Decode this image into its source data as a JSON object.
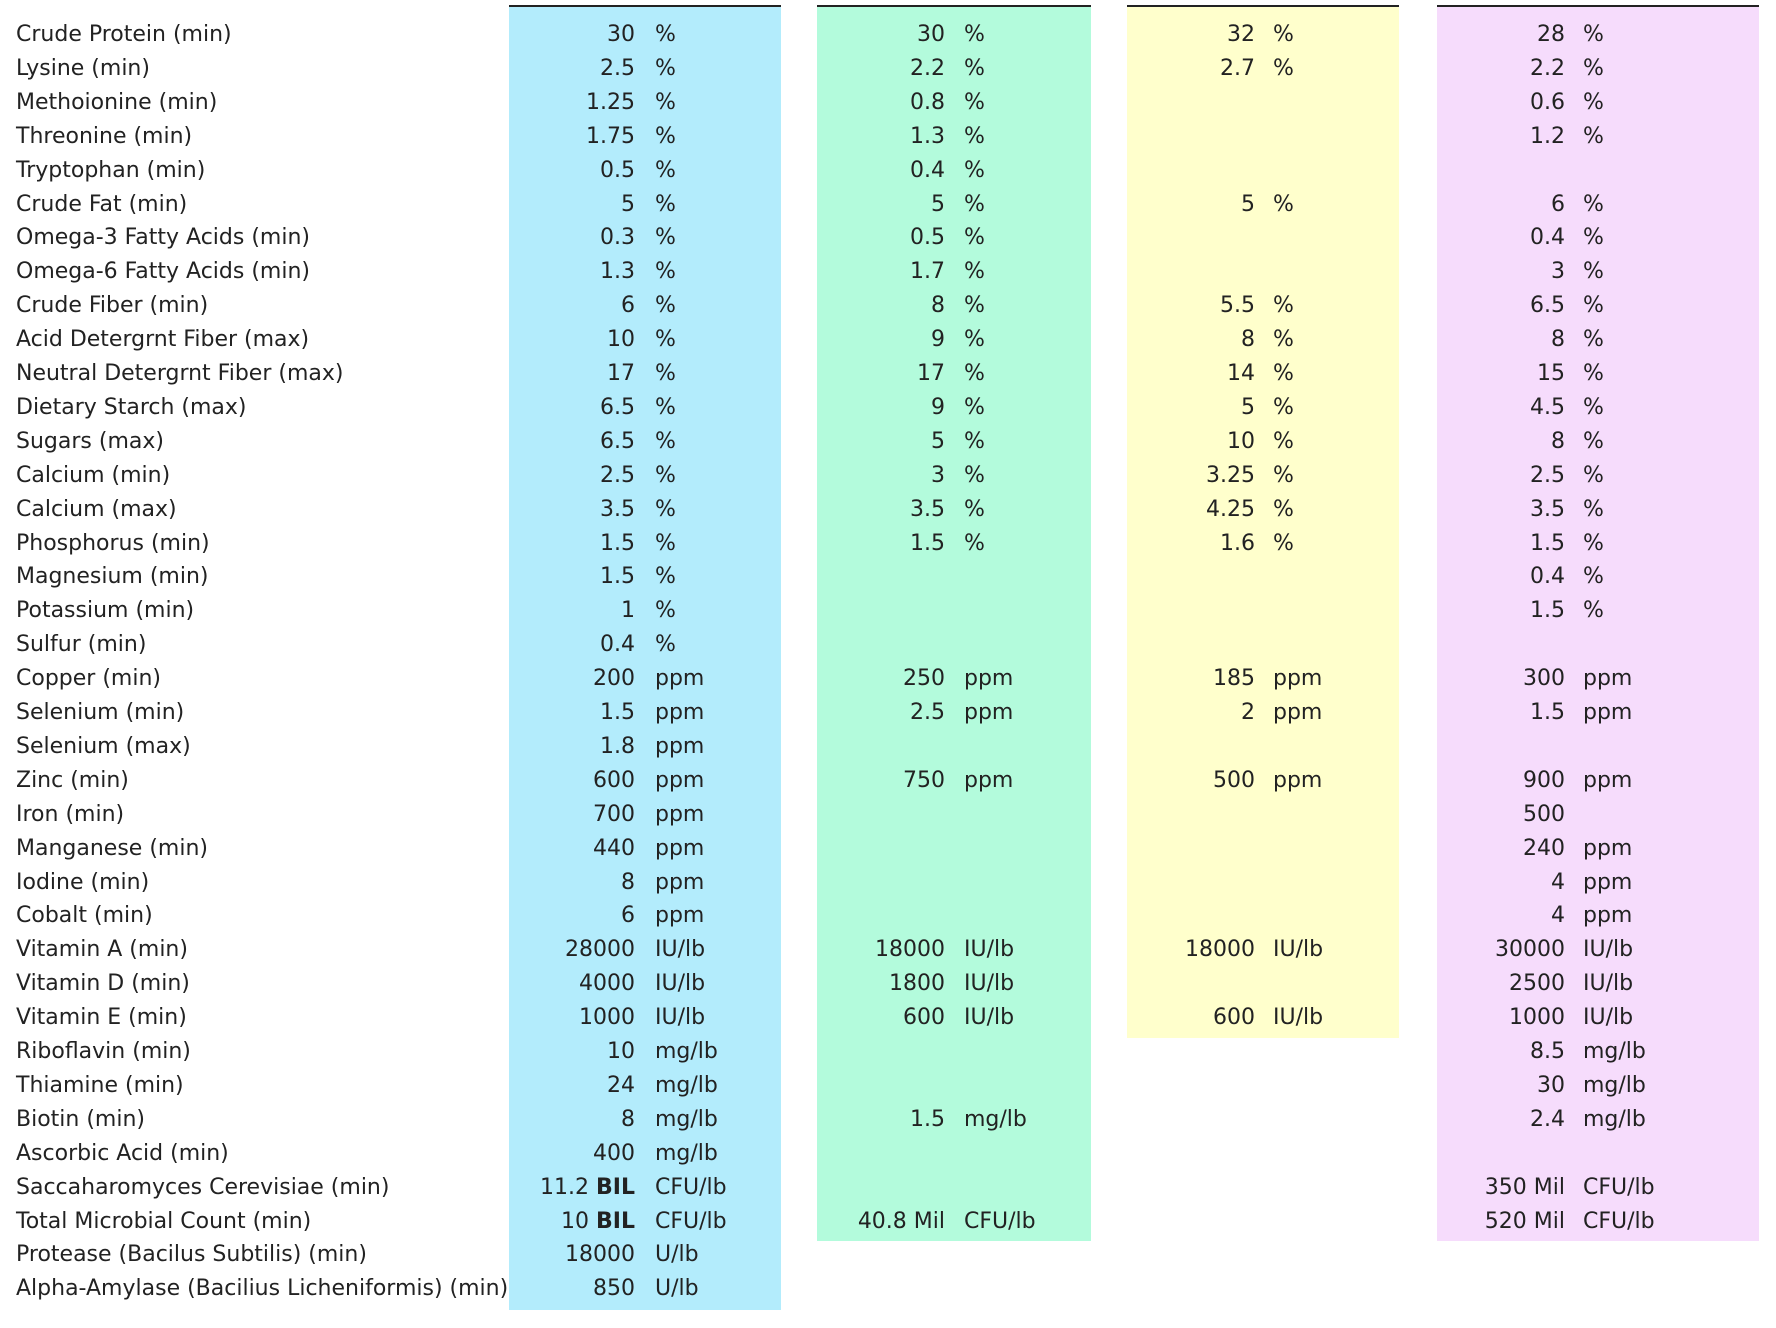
{
  "table": {
    "rows": [
      {
        "label": "Crude Protein (min)",
        "cells": [
          {
            "value": "30",
            "unit": "%"
          },
          {
            "value": "30",
            "unit": "%"
          },
          {
            "value": "32",
            "unit": "%"
          },
          {
            "value": "28",
            "unit": "%"
          }
        ]
      },
      {
        "label": "Lysine (min)",
        "cells": [
          {
            "value": "2.5",
            "unit": "%"
          },
          {
            "value": "2.2",
            "unit": "%"
          },
          {
            "value": "2.7",
            "unit": "%"
          },
          {
            "value": "2.2",
            "unit": "%"
          }
        ]
      },
      {
        "label": "Methoionine (min)",
        "cells": [
          {
            "value": "1.25",
            "unit": "%"
          },
          {
            "value": "0.8",
            "unit": "%"
          },
          null,
          {
            "value": "0.6",
            "unit": "%"
          }
        ]
      },
      {
        "label": "Threonine (min)",
        "cells": [
          {
            "value": "1.75",
            "unit": "%"
          },
          {
            "value": "1.3",
            "unit": "%"
          },
          null,
          {
            "value": "1.2",
            "unit": "%"
          }
        ]
      },
      {
        "label": "Tryptophan (min)",
        "cells": [
          {
            "value": "0.5",
            "unit": "%"
          },
          {
            "value": "0.4",
            "unit": "%"
          },
          null,
          null
        ]
      },
      {
        "label": "Crude Fat (min)",
        "cells": [
          {
            "value": "5",
            "unit": "%"
          },
          {
            "value": "5",
            "unit": "%"
          },
          {
            "value": "5",
            "unit": "%"
          },
          {
            "value": "6",
            "unit": "%"
          }
        ]
      },
      {
        "label": "Omega-3 Fatty Acids (min)",
        "cells": [
          {
            "value": "0.3",
            "unit": "%"
          },
          {
            "value": "0.5",
            "unit": "%"
          },
          null,
          {
            "value": "0.4",
            "unit": "%"
          }
        ]
      },
      {
        "label": "Omega-6 Fatty Acids (min)",
        "cells": [
          {
            "value": "1.3",
            "unit": "%"
          },
          {
            "value": "1.7",
            "unit": "%"
          },
          null,
          {
            "value": "3",
            "unit": "%"
          }
        ]
      },
      {
        "label": "Crude Fiber (min)",
        "cells": [
          {
            "value": "6",
            "unit": "%"
          },
          {
            "value": "8",
            "unit": "%"
          },
          {
            "value": "5.5",
            "unit": "%"
          },
          {
            "value": "6.5",
            "unit": "%"
          }
        ]
      },
      {
        "label": "Acid Detergrnt Fiber (max)",
        "cells": [
          {
            "value": "10",
            "unit": "%"
          },
          {
            "value": "9",
            "unit": "%"
          },
          {
            "value": "8",
            "unit": "%"
          },
          {
            "value": "8",
            "unit": "%"
          }
        ]
      },
      {
        "label": "Neutral Detergrnt Fiber (max)",
        "cells": [
          {
            "value": "17",
            "unit": "%"
          },
          {
            "value": "17",
            "unit": "%"
          },
          {
            "value": "14",
            "unit": "%"
          },
          {
            "value": "15",
            "unit": "%"
          }
        ]
      },
      {
        "label": "Dietary Starch (max)",
        "cells": [
          {
            "value": "6.5",
            "unit": "%"
          },
          {
            "value": "9",
            "unit": "%"
          },
          {
            "value": "5",
            "unit": "%"
          },
          {
            "value": "4.5",
            "unit": "%"
          }
        ]
      },
      {
        "label": "Sugars (max)",
        "cells": [
          {
            "value": "6.5",
            "unit": "%"
          },
          {
            "value": "5",
            "unit": "%"
          },
          {
            "value": "10",
            "unit": "%"
          },
          {
            "value": "8",
            "unit": "%"
          }
        ]
      },
      {
        "label": "Calcium (min)",
        "cells": [
          {
            "value": "2.5",
            "unit": "%"
          },
          {
            "value": "3",
            "unit": "%"
          },
          {
            "value": "3.25",
            "unit": "%"
          },
          {
            "value": "2.5",
            "unit": "%"
          }
        ]
      },
      {
        "label": "Calcium (max)",
        "cells": [
          {
            "value": "3.5",
            "unit": "%"
          },
          {
            "value": "3.5",
            "unit": "%"
          },
          {
            "value": "4.25",
            "unit": "%"
          },
          {
            "value": "3.5",
            "unit": "%"
          }
        ]
      },
      {
        "label": "Phosphorus (min)",
        "cells": [
          {
            "value": "1.5",
            "unit": "%"
          },
          {
            "value": "1.5",
            "unit": "%"
          },
          {
            "value": "1.6",
            "unit": "%"
          },
          {
            "value": "1.5",
            "unit": "%"
          }
        ]
      },
      {
        "label": "Magnesium (min)",
        "cells": [
          {
            "value": "1.5",
            "unit": "%"
          },
          null,
          null,
          {
            "value": "0.4",
            "unit": "%"
          }
        ]
      },
      {
        "label": "Potassium (min)",
        "cells": [
          {
            "value": "1",
            "unit": "%"
          },
          null,
          null,
          {
            "value": "1.5",
            "unit": "%"
          }
        ]
      },
      {
        "label": "Sulfur (min)",
        "cells": [
          {
            "value": "0.4",
            "unit": "%"
          },
          null,
          null,
          null
        ]
      },
      {
        "label": "Copper (min)",
        "cells": [
          {
            "value": "200",
            "unit": "ppm"
          },
          {
            "value": "250",
            "unit": "ppm"
          },
          {
            "value": "185",
            "unit": "ppm"
          },
          {
            "value": "300",
            "unit": "ppm"
          }
        ]
      },
      {
        "label": "Selenium (min)",
        "cells": [
          {
            "value": "1.5",
            "unit": "ppm"
          },
          {
            "value": "2.5",
            "unit": "ppm"
          },
          {
            "value": "2",
            "unit": "ppm"
          },
          {
            "value": "1.5",
            "unit": "ppm"
          }
        ]
      },
      {
        "label": "Selenium (max)",
        "cells": [
          {
            "value": "1.8",
            "unit": "ppm"
          },
          null,
          null,
          null
        ]
      },
      {
        "label": "Zinc (min)",
        "cells": [
          {
            "value": "600",
            "unit": "ppm"
          },
          {
            "value": "750",
            "unit": "ppm"
          },
          {
            "value": "500",
            "unit": "ppm"
          },
          {
            "value": "900",
            "unit": "ppm"
          }
        ]
      },
      {
        "label": "Iron (min)",
        "cells": [
          {
            "value": "700",
            "unit": "ppm"
          },
          null,
          null,
          {
            "value": "500"
          }
        ]
      },
      {
        "label": "Manganese (min)",
        "cells": [
          {
            "value": "440",
            "unit": "ppm"
          },
          null,
          null,
          {
            "value": "240",
            "unit": "ppm"
          }
        ]
      },
      {
        "label": "Iodine (min)",
        "cells": [
          {
            "value": "8",
            "unit": "ppm"
          },
          null,
          null,
          {
            "value": "4",
            "unit": "ppm"
          }
        ]
      },
      {
        "label": "Cobalt (min)",
        "cells": [
          {
            "value": "6",
            "unit": "ppm"
          },
          null,
          null,
          {
            "value": "4",
            "unit": "ppm"
          }
        ]
      },
      {
        "label": "Vitamin A (min)",
        "cells": [
          {
            "value": "28000",
            "unit": "IU/lb"
          },
          {
            "value": "18000",
            "unit": "IU/lb"
          },
          {
            "value": "18000",
            "unit": "IU/lb"
          },
          {
            "value": "30000",
            "unit": "IU/lb"
          }
        ]
      },
      {
        "label": "Vitamin D (min)",
        "cells": [
          {
            "value": "4000",
            "unit": "IU/lb"
          },
          {
            "value": "1800",
            "unit": "IU/lb"
          },
          null,
          {
            "value": "2500",
            "unit": "IU/lb"
          }
        ]
      },
      {
        "label": "Vitamin E (min)",
        "cells": [
          {
            "value": "1000",
            "unit": "IU/lb"
          },
          {
            "value": "600",
            "unit": "IU/lb"
          },
          {
            "value": "600",
            "unit": "IU/lb"
          },
          {
            "value": "1000",
            "unit": "IU/lb"
          }
        ]
      },
      {
        "label": "Riboflavin (min)",
        "cells": [
          {
            "value": "10",
            "unit": "mg/lb"
          },
          null,
          null,
          {
            "value": "8.5",
            "unit": "mg/lb"
          }
        ]
      },
      {
        "label": "Thiamine (min)",
        "cells": [
          {
            "value": "24",
            "unit": "mg/lb"
          },
          null,
          null,
          {
            "value": "30",
            "unit": "mg/lb"
          }
        ]
      },
      {
        "label": "Biotin (min)",
        "cells": [
          {
            "value": "8",
            "unit": "mg/lb"
          },
          {
            "value": "1.5",
            "unit": "mg/lb"
          },
          null,
          {
            "value": "2.4",
            "unit": "mg/lb"
          }
        ]
      },
      {
        "label": "Ascorbic Acid (min)",
        "cells": [
          {
            "value": "400",
            "unit": "mg/lb"
          },
          null,
          null,
          null
        ]
      },
      {
        "label": "Saccaharomyces Cerevisiae (min)",
        "cells": [
          {
            "value": "11.2",
            "bold": "BIL",
            "unit": "CFU/lb"
          },
          null,
          null,
          {
            "value": "350 Mil",
            "unit": "CFU/lb"
          }
        ]
      },
      {
        "label": "Total Microbial Count (min)",
        "cells": [
          {
            "value": "10",
            "bold": "BIL",
            "unit": "CFU/lb"
          },
          {
            "value": "40.8 Mil",
            "unit": "CFU/lb"
          },
          null,
          {
            "value": "520 Mil",
            "unit": "CFU/lb"
          }
        ]
      },
      {
        "label": "Protease (Bacilus Subtilis) (min)",
        "cells": [
          {
            "value": "18000",
            "unit": "U/lb"
          },
          null,
          null,
          null
        ]
      },
      {
        "label": "Alpha-Amylase (Bacilius Licheniformis) (min)",
        "cells": [
          {
            "value": "850",
            "unit": "U/lb"
          },
          null,
          null,
          null
        ]
      }
    ]
  }
}
